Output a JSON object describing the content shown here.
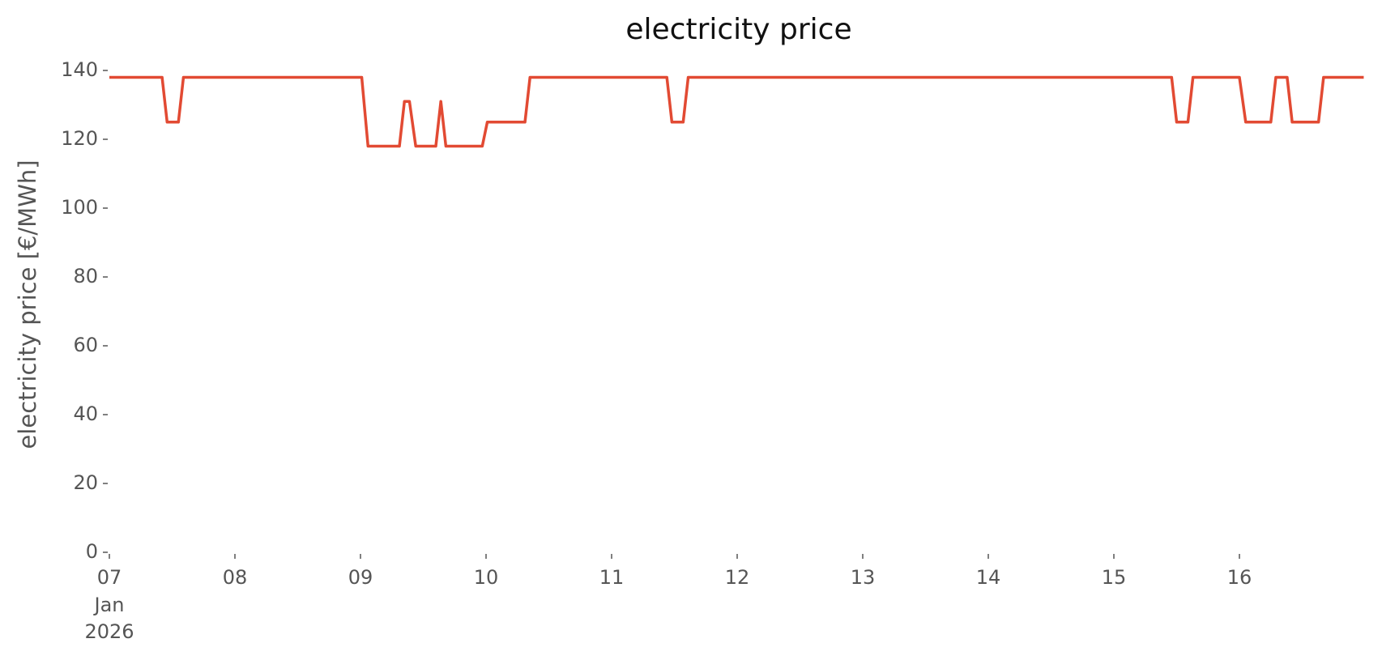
{
  "chart_data": {
    "type": "line",
    "title": "electricity price",
    "y_label": "electricity price [€/MWh]",
    "x_tick_month": "Jan",
    "x_tick_year": "2026",
    "x": [
      7.0,
      7.42,
      7.46,
      7.55,
      7.59,
      9.01,
      9.06,
      9.31,
      9.35,
      9.39,
      9.44,
      9.6,
      9.64,
      9.68,
      9.97,
      10.01,
      10.31,
      10.35,
      11.44,
      11.48,
      11.57,
      11.61,
      15.46,
      15.5,
      15.59,
      15.63,
      16.0,
      16.05,
      16.25,
      16.29,
      16.38,
      16.42,
      16.63,
      16.67,
      16.99
    ],
    "series": [
      {
        "name": "electricity price",
        "color": "#e24a33",
        "values": [
          138,
          138,
          125,
          125,
          138,
          138,
          118,
          118,
          131,
          131,
          118,
          118,
          131,
          118,
          118,
          125,
          125,
          138,
          138,
          125,
          125,
          138,
          138,
          125,
          125,
          138,
          138,
          125,
          125,
          138,
          138,
          125,
          125,
          138,
          138
        ]
      }
    ],
    "xlim": [
      7,
      17
    ],
    "xticks": [
      {
        "value": 7,
        "label": "07"
      },
      {
        "value": 8,
        "label": "08"
      },
      {
        "value": 9,
        "label": "09"
      },
      10,
      11,
      12,
      13,
      14,
      15,
      16
    ],
    "ylim": [
      0,
      140
    ],
    "yticks": [
      0,
      20,
      40,
      60,
      80,
      100,
      120,
      140
    ],
    "grid": false
  }
}
